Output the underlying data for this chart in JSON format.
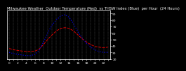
{
  "hours": [
    0,
    1,
    2,
    3,
    4,
    5,
    6,
    7,
    8,
    9,
    10,
    11,
    12,
    13,
    14,
    15,
    16,
    17,
    18,
    19,
    20,
    21,
    22,
    23
  ],
  "temp_red": [
    36,
    34,
    33,
    32,
    31,
    31,
    32,
    35,
    42,
    50,
    57,
    63,
    67,
    68,
    67,
    63,
    57,
    51,
    46,
    42,
    39,
    38,
    37,
    38
  ],
  "thsw_blue": [
    30,
    28,
    27,
    26,
    25,
    25,
    27,
    33,
    46,
    60,
    72,
    80,
    86,
    88,
    84,
    74,
    62,
    52,
    44,
    38,
    34,
    31,
    30,
    30
  ],
  "title": "Milwaukee Weather  Outdoor Temperature (Red)  vs THSW Index (Blue)  per Hour  (24 Hours)",
  "ylim": [
    20,
    95
  ],
  "xlim": [
    -0.5,
    23.5
  ],
  "ytick_vals": [
    20,
    30,
    40,
    50,
    60,
    70,
    80,
    90
  ],
  "ytick_labels": [
    "20",
    "30",
    "40",
    "50",
    "60",
    "70",
    "80",
    "90"
  ],
  "xtick_vals": [
    0,
    1,
    2,
    3,
    4,
    5,
    6,
    7,
    8,
    9,
    10,
    11,
    12,
    13,
    14,
    15,
    16,
    17,
    18,
    19,
    20,
    21,
    22,
    23
  ],
  "red_color": "#dd0000",
  "blue_color": "#0000dd",
  "bg_color": "#000000",
  "plot_bg": "#000000",
  "title_fontsize": 3.8,
  "tick_fontsize": 3.2,
  "grid_color": "#666666",
  "title_color": "#ffffff",
  "tick_color": "#ffffff",
  "spine_color": "#ffffff"
}
